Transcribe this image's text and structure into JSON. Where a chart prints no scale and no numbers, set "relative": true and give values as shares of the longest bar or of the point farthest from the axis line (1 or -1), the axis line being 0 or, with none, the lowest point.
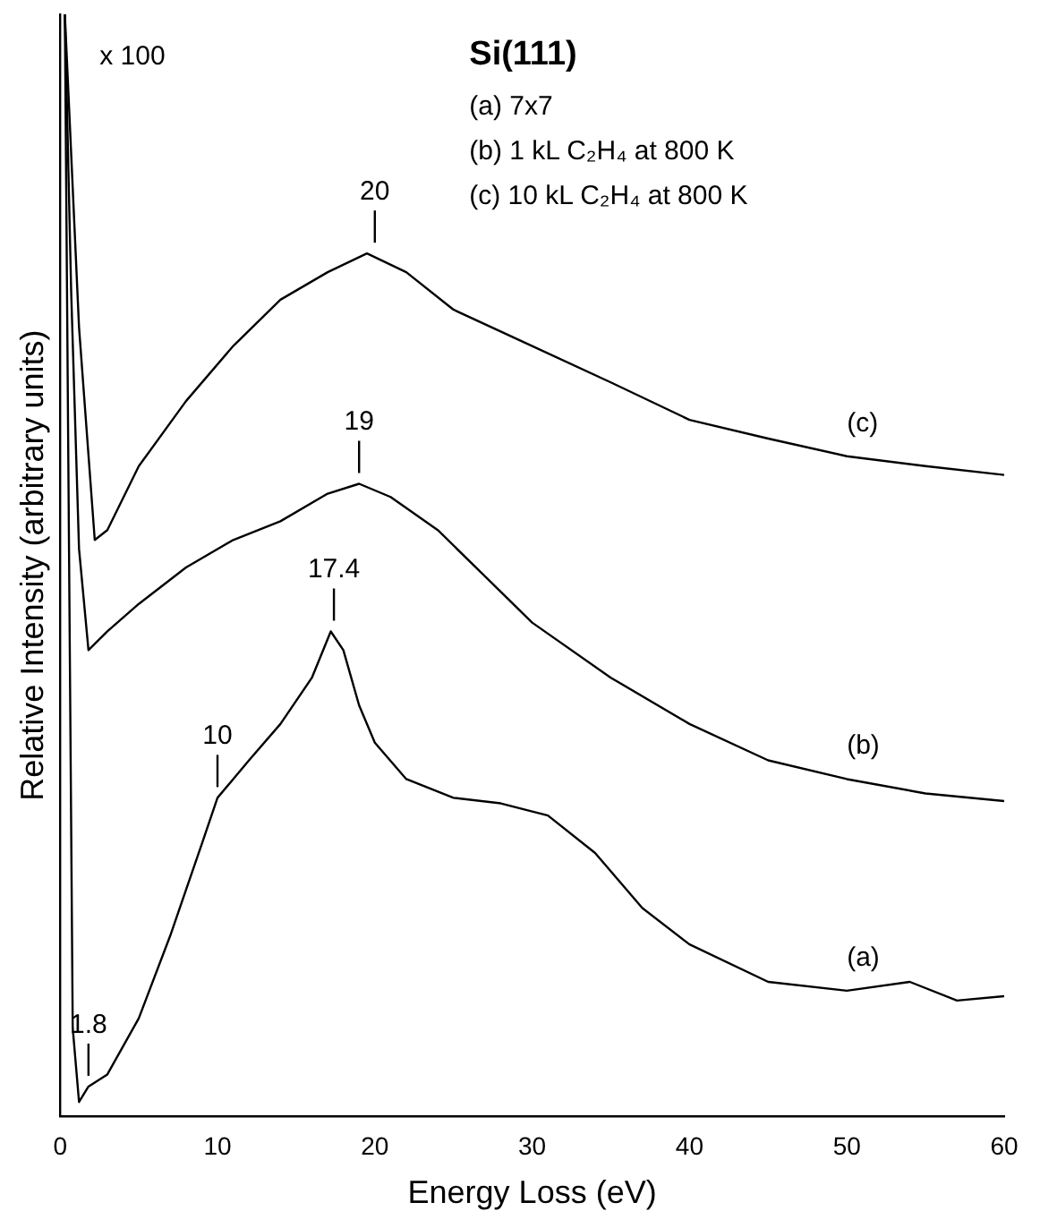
{
  "chart_data": {
    "type": "line",
    "relative": true,
    "xlabel": "Energy Loss (eV)",
    "ylabel": "Relative Intensity (arbitrary units)",
    "legend_title": "Si(111)",
    "xlim": [
      0,
      60
    ],
    "xticks": [
      0,
      10,
      20,
      30,
      40,
      50,
      60
    ],
    "grid": false,
    "legend": false,
    "marker": "none",
    "line_style": "solid",
    "series": [
      {
        "name": "(a)",
        "color": "#000000",
        "x": [
          0.3,
          0.8,
          1.2,
          1.8,
          3,
          5,
          7,
          9,
          10,
          12,
          14,
          16,
          17.2,
          18,
          19,
          20,
          22,
          25,
          28,
          31,
          34,
          37,
          40,
          45,
          50,
          54,
          57,
          60
        ],
        "values": [
          1.0,
          0.08,
          0.013,
          0.027,
          0.038,
          0.089,
          0.164,
          0.247,
          0.289,
          0.323,
          0.356,
          0.398,
          0.44,
          0.423,
          0.373,
          0.339,
          0.306,
          0.289,
          0.284,
          0.273,
          0.239,
          0.189,
          0.156,
          0.122,
          0.114,
          0.122,
          0.105,
          0.109
        ]
      },
      {
        "name": "(b)",
        "color": "#000000",
        "x": [
          0.3,
          0.7,
          1.2,
          1.8,
          3,
          5,
          8,
          11,
          14,
          17,
          19,
          21,
          24,
          27,
          30,
          35,
          40,
          45,
          50,
          55,
          60
        ],
        "values": [
          1.0,
          0.749,
          0.515,
          0.423,
          0.44,
          0.465,
          0.498,
          0.523,
          0.54,
          0.565,
          0.574,
          0.562,
          0.532,
          0.49,
          0.448,
          0.398,
          0.356,
          0.323,
          0.306,
          0.293,
          0.286
        ]
      },
      {
        "name": "(c)",
        "color": "#000000",
        "x": [
          0.3,
          1.2,
          2.2,
          3,
          5,
          8,
          11,
          14,
          17,
          19.5,
          22,
          25,
          30,
          35,
          40,
          45,
          50,
          55,
          60
        ],
        "values": [
          1.0,
          0.716,
          0.523,
          0.532,
          0.59,
          0.649,
          0.699,
          0.741,
          0.766,
          0.783,
          0.766,
          0.732,
          0.699,
          0.666,
          0.632,
          0.615,
          0.599,
          0.59,
          0.582
        ]
      }
    ],
    "annotations": [
      "x 100",
      "(a) 7x7",
      "(b) 1 kL C₂H₄ at 800 K",
      "(c) 10 kL C₂H₄ at 800 K",
      {
        "text": "1.8",
        "x": 1.8,
        "y": 0.027
      },
      {
        "text": "10",
        "x": 10,
        "y": 0.289
      },
      {
        "text": "17.4",
        "x": 17.4,
        "y": 0.44
      },
      {
        "text": "19",
        "x": 19,
        "y": 0.574
      },
      {
        "text": "20",
        "x": 20,
        "y": 0.783
      }
    ]
  }
}
